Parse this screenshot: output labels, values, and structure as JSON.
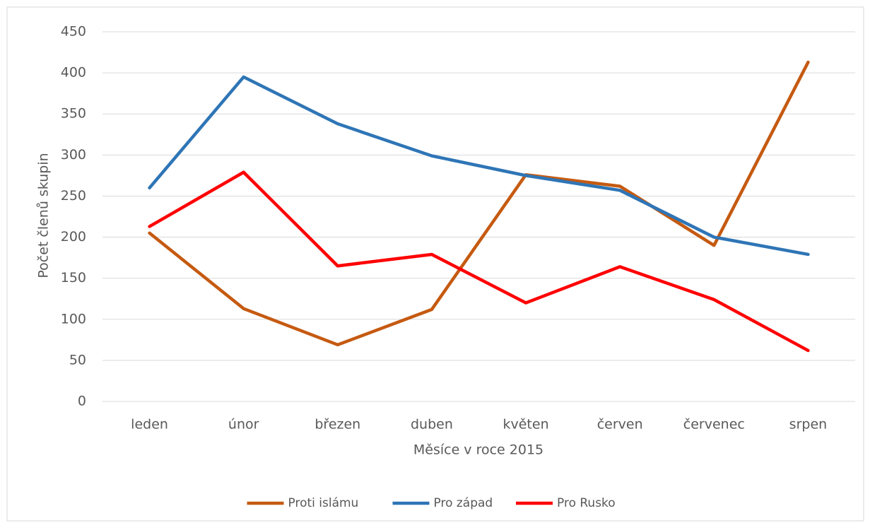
{
  "chart_data": {
    "type": "line",
    "xlabel": "Měsíce v roce 2015",
    "ylabel": "Počet členů skupin",
    "categories": [
      "leden",
      "únor",
      "březen",
      "duben",
      "květen",
      "červen",
      "červenec",
      "srpen"
    ],
    "series": [
      {
        "name": "Proti islámu",
        "color": "#c55a11",
        "values": [
          205,
          113,
          69,
          112,
          276,
          262,
          190,
          413
        ]
      },
      {
        "name": "Pro západ",
        "color": "#2e75b6",
        "values": [
          260,
          395,
          338,
          299,
          275,
          257,
          200,
          179
        ]
      },
      {
        "name": "Pro Rusko",
        "color": "#ff0000",
        "values": [
          213,
          279,
          165,
          179,
          120,
          164,
          124,
          62
        ]
      }
    ],
    "ylim": [
      0,
      450
    ],
    "yticks": [
      0,
      50,
      100,
      150,
      200,
      250,
      300,
      350,
      400,
      450
    ],
    "grid": true,
    "legend": "bottom"
  }
}
